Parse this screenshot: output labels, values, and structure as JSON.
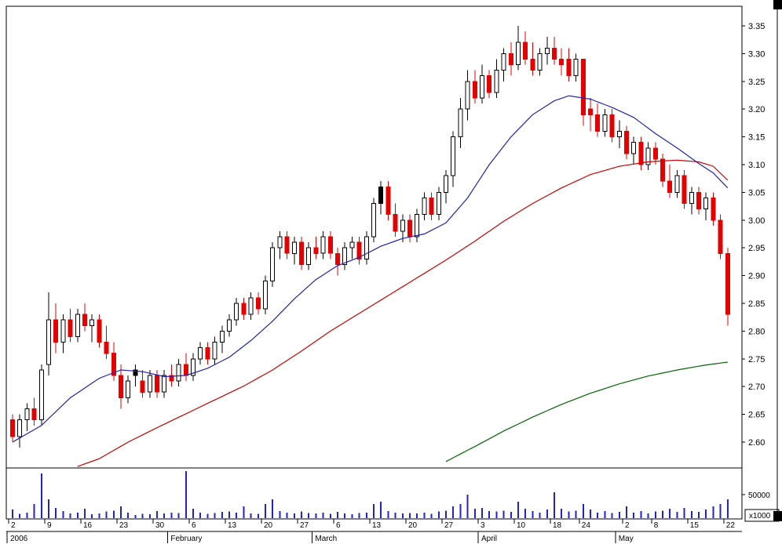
{
  "colors": {
    "frame": "#000000",
    "axis_text": "#000000",
    "up_candle": "#ffffff",
    "down_candle": "#e60000",
    "candle_outline": "#000000",
    "black_candle": "#000000",
    "ma_short": "#2222bb",
    "ma_medium": "#cc0000",
    "ma_long": "#006600",
    "volume": "#2222cc"
  },
  "chart_data": {
    "type": "candlestick",
    "title": "",
    "ylim": [
      2.6,
      3.35
    ],
    "y_tick_labels": [
      "3.35",
      "3.30",
      "3.25",
      "3.20",
      "3.15",
      "3.10",
      "3.05",
      "3.00",
      "2.95",
      "2.90",
      "2.85",
      "2.80",
      "2.75",
      "2.70",
      "2.65",
      "2.60"
    ],
    "volume_gridline": {
      "value": 50000,
      "label": "50000"
    },
    "volume_unit_label": "x1000",
    "year_label": "2006",
    "day_ticks": [
      {
        "i": 0,
        "label": "2"
      },
      {
        "i": 5,
        "label": "9"
      },
      {
        "i": 10,
        "label": "16"
      },
      {
        "i": 15,
        "label": "23"
      },
      {
        "i": 20,
        "label": "30"
      },
      {
        "i": 25,
        "label": "6"
      },
      {
        "i": 30,
        "label": "13"
      },
      {
        "i": 35,
        "label": "20"
      },
      {
        "i": 40,
        "label": "27"
      },
      {
        "i": 45,
        "label": "6"
      },
      {
        "i": 50,
        "label": "13"
      },
      {
        "i": 55,
        "label": "20"
      },
      {
        "i": 60,
        "label": "27"
      },
      {
        "i": 65,
        "label": "3"
      },
      {
        "i": 70,
        "label": "10"
      },
      {
        "i": 75,
        "label": "18"
      },
      {
        "i": 79,
        "label": "24"
      },
      {
        "i": 85,
        "label": "2"
      },
      {
        "i": 89,
        "label": "8"
      },
      {
        "i": 94,
        "label": "15"
      },
      {
        "i": 99,
        "label": "22"
      }
    ],
    "months": [
      {
        "i": 0,
        "label": "2006"
      },
      {
        "i": 22,
        "label": "February"
      },
      {
        "i": 42,
        "label": "March"
      },
      {
        "i": 65,
        "label": "April"
      },
      {
        "i": 84,
        "label": "May"
      }
    ],
    "candles": [
      [
        2.64,
        2.65,
        2.6,
        2.61
      ],
      [
        2.61,
        2.65,
        2.59,
        2.64
      ],
      [
        2.64,
        2.67,
        2.62,
        2.66
      ],
      [
        2.66,
        2.68,
        2.63,
        2.64
      ],
      [
        2.64,
        2.74,
        2.63,
        2.73
      ],
      [
        2.74,
        2.87,
        2.72,
        2.82
      ],
      [
        2.82,
        2.85,
        2.76,
        2.78
      ],
      [
        2.78,
        2.83,
        2.76,
        2.82
      ],
      [
        2.82,
        2.84,
        2.78,
        2.79
      ],
      [
        2.79,
        2.84,
        2.78,
        2.83
      ],
      [
        2.83,
        2.85,
        2.8,
        2.81
      ],
      [
        2.81,
        2.83,
        2.78,
        2.82
      ],
      [
        2.82,
        2.83,
        2.77,
        2.78
      ],
      [
        2.78,
        2.81,
        2.75,
        2.76
      ],
      [
        2.76,
        2.78,
        2.71,
        2.72
      ],
      [
        2.72,
        2.74,
        2.66,
        2.68
      ],
      [
        2.68,
        2.72,
        2.67,
        2.71
      ],
      [
        2.72,
        2.74,
        2.7,
        2.73
      ],
      [
        2.71,
        2.73,
        2.68,
        2.69
      ],
      [
        2.69,
        2.73,
        2.68,
        2.72
      ],
      [
        2.72,
        2.73,
        2.68,
        2.69
      ],
      [
        2.69,
        2.73,
        2.68,
        2.72
      ],
      [
        2.72,
        2.74,
        2.7,
        2.71
      ],
      [
        2.71,
        2.75,
        2.7,
        2.74
      ],
      [
        2.74,
        2.76,
        2.71,
        2.72
      ],
      [
        2.72,
        2.76,
        2.71,
        2.75
      ],
      [
        2.75,
        2.78,
        2.74,
        2.77
      ],
      [
        2.77,
        2.78,
        2.74,
        2.75
      ],
      [
        2.75,
        2.79,
        2.74,
        2.78
      ],
      [
        2.78,
        2.81,
        2.76,
        2.8
      ],
      [
        2.8,
        2.83,
        2.79,
        2.82
      ],
      [
        2.82,
        2.86,
        2.81,
        2.85
      ],
      [
        2.85,
        2.86,
        2.82,
        2.83
      ],
      [
        2.83,
        2.87,
        2.82,
        2.86
      ],
      [
        2.86,
        2.87,
        2.83,
        2.84
      ],
      [
        2.84,
        2.9,
        2.83,
        2.89
      ],
      [
        2.89,
        2.96,
        2.88,
        2.95
      ],
      [
        2.95,
        2.98,
        2.93,
        2.97
      ],
      [
        2.97,
        2.98,
        2.93,
        2.94
      ],
      [
        2.94,
        2.97,
        2.92,
        2.96
      ],
      [
        2.96,
        2.97,
        2.91,
        2.92
      ],
      [
        2.92,
        2.96,
        2.91,
        2.95
      ],
      [
        2.95,
        2.97,
        2.93,
        2.94
      ],
      [
        2.94,
        2.98,
        2.93,
        2.97
      ],
      [
        2.97,
        2.98,
        2.93,
        2.94
      ],
      [
        2.94,
        2.95,
        2.9,
        2.92
      ],
      [
        2.92,
        2.96,
        2.91,
        2.95
      ],
      [
        2.95,
        2.97,
        2.93,
        2.96
      ],
      [
        2.96,
        2.97,
        2.92,
        2.93
      ],
      [
        2.93,
        2.98,
        2.92,
        2.97
      ],
      [
        2.97,
        3.04,
        2.96,
        3.03
      ],
      [
        3.03,
        3.07,
        3.01,
        3.06
      ],
      [
        3.06,
        3.07,
        3.0,
        3.01
      ],
      [
        3.01,
        3.03,
        2.97,
        2.98
      ],
      [
        2.98,
        3.01,
        2.96,
        3.0
      ],
      [
        3.0,
        3.01,
        2.96,
        2.97
      ],
      [
        2.97,
        3.02,
        2.96,
        3.01
      ],
      [
        3.01,
        3.05,
        3.0,
        3.04
      ],
      [
        3.04,
        3.05,
        3.0,
        3.01
      ],
      [
        3.01,
        3.06,
        3.0,
        3.05
      ],
      [
        3.05,
        3.09,
        3.03,
        3.08
      ],
      [
        3.08,
        3.16,
        3.06,
        3.15
      ],
      [
        3.15,
        3.22,
        3.13,
        3.2
      ],
      [
        3.2,
        3.27,
        3.18,
        3.25
      ],
      [
        3.25,
        3.27,
        3.21,
        3.22
      ],
      [
        3.22,
        3.28,
        3.21,
        3.26
      ],
      [
        3.26,
        3.27,
        3.22,
        3.23
      ],
      [
        3.23,
        3.29,
        3.22,
        3.27
      ],
      [
        3.27,
        3.31,
        3.25,
        3.3
      ],
      [
        3.3,
        3.32,
        3.26,
        3.28
      ],
      [
        3.28,
        3.35,
        3.27,
        3.32
      ],
      [
        3.32,
        3.34,
        3.28,
        3.29
      ],
      [
        3.29,
        3.32,
        3.26,
        3.27
      ],
      [
        3.27,
        3.31,
        3.26,
        3.3
      ],
      [
        3.3,
        3.33,
        3.28,
        3.31
      ],
      [
        3.31,
        3.33,
        3.28,
        3.29
      ],
      [
        3.29,
        3.31,
        3.26,
        3.28
      ],
      [
        3.29,
        3.31,
        3.25,
        3.26
      ],
      [
        3.26,
        3.3,
        3.25,
        3.29
      ],
      [
        3.29,
        3.29,
        3.17,
        3.19
      ],
      [
        3.2,
        3.22,
        3.16,
        3.19
      ],
      [
        3.19,
        3.21,
        3.15,
        3.16
      ],
      [
        3.16,
        3.2,
        3.15,
        3.19
      ],
      [
        3.19,
        3.2,
        3.14,
        3.15
      ],
      [
        3.15,
        3.18,
        3.13,
        3.16
      ],
      [
        3.16,
        3.17,
        3.11,
        3.12
      ],
      [
        3.12,
        3.15,
        3.1,
        3.14
      ],
      [
        3.14,
        3.15,
        3.09,
        3.1
      ],
      [
        3.1,
        3.14,
        3.09,
        3.13
      ],
      [
        3.13,
        3.14,
        3.1,
        3.11
      ],
      [
        3.11,
        3.12,
        3.06,
        3.07
      ],
      [
        3.07,
        3.1,
        3.04,
        3.05
      ],
      [
        3.05,
        3.09,
        3.04,
        3.08
      ],
      [
        3.08,
        3.09,
        3.02,
        3.03
      ],
      [
        3.03,
        3.06,
        3.01,
        3.05
      ],
      [
        3.05,
        3.06,
        3.01,
        3.02
      ],
      [
        3.02,
        3.05,
        3.0,
        3.04
      ],
      [
        3.04,
        3.05,
        2.99,
        3.0
      ],
      [
        3.0,
        3.01,
        2.93,
        2.94
      ],
      [
        2.94,
        2.95,
        2.81,
        2.83
      ]
    ],
    "black_indices": [
      17,
      51
    ],
    "volumes": [
      18000,
      9000,
      12000,
      30000,
      95000,
      40000,
      22000,
      15000,
      10000,
      12000,
      20000,
      8000,
      10000,
      14000,
      16000,
      25000,
      12000,
      7000,
      9000,
      8000,
      15000,
      10000,
      12000,
      11000,
      100000,
      20000,
      12000,
      9000,
      11000,
      13000,
      14000,
      12000,
      25000,
      10000,
      9000,
      30000,
      40000,
      15000,
      12000,
      10000,
      14000,
      11000,
      10000,
      12000,
      9000,
      13000,
      10000,
      8000,
      11000,
      12000,
      30000,
      35000,
      15000,
      12000,
      10000,
      11000,
      10000,
      12000,
      9000,
      14000,
      16000,
      25000,
      30000,
      50000,
      20000,
      22000,
      15000,
      14000,
      16000,
      13000,
      35000,
      20000,
      15000,
      12000,
      18000,
      55000,
      20000,
      14000,
      16000,
      30000,
      18000,
      12000,
      15000,
      11000,
      13000,
      25000,
      12000,
      15000,
      10000,
      14000,
      16000,
      20000,
      13000,
      22000,
      15000,
      13000,
      18000,
      25000,
      30000,
      40000
    ],
    "ma_short": {
      "name": "short-moving-average",
      "points": [
        [
          0,
          2.6
        ],
        [
          4,
          2.63
        ],
        [
          8,
          2.68
        ],
        [
          12,
          2.715
        ],
        [
          15,
          2.73
        ],
        [
          18,
          2.727
        ],
        [
          21,
          2.718
        ],
        [
          24,
          2.72
        ],
        [
          27,
          2.733
        ],
        [
          30,
          2.753
        ],
        [
          33,
          2.783
        ],
        [
          36,
          2.818
        ],
        [
          39,
          2.858
        ],
        [
          42,
          2.893
        ],
        [
          45,
          2.918
        ],
        [
          48,
          2.933
        ],
        [
          51,
          2.953
        ],
        [
          54,
          2.967
        ],
        [
          57,
          2.975
        ],
        [
          60,
          2.995
        ],
        [
          63,
          3.04
        ],
        [
          66,
          3.1
        ],
        [
          69,
          3.15
        ],
        [
          72,
          3.19
        ],
        [
          75,
          3.215
        ],
        [
          77,
          3.224
        ],
        [
          80,
          3.218
        ],
        [
          83,
          3.203
        ],
        [
          86,
          3.185
        ],
        [
          89,
          3.156
        ],
        [
          92,
          3.13
        ],
        [
          95,
          3.102
        ],
        [
          97,
          3.085
        ],
        [
          99,
          3.058
        ]
      ]
    },
    "ma_medium": {
      "name": "medium-moving-average",
      "points": [
        [
          9,
          2.556
        ],
        [
          12,
          2.57
        ],
        [
          16,
          2.6
        ],
        [
          20,
          2.626
        ],
        [
          24,
          2.651
        ],
        [
          28,
          2.676
        ],
        [
          32,
          2.701
        ],
        [
          36,
          2.73
        ],
        [
          40,
          2.764
        ],
        [
          44,
          2.8
        ],
        [
          48,
          2.832
        ],
        [
          52,
          2.864
        ],
        [
          56,
          2.896
        ],
        [
          60,
          2.928
        ],
        [
          64,
          2.962
        ],
        [
          68,
          2.998
        ],
        [
          72,
          3.03
        ],
        [
          76,
          3.058
        ],
        [
          80,
          3.082
        ],
        [
          84,
          3.097
        ],
        [
          88,
          3.105
        ],
        [
          92,
          3.108
        ],
        [
          95,
          3.105
        ],
        [
          97,
          3.097
        ],
        [
          99,
          3.072
        ]
      ]
    },
    "ma_long": {
      "name": "long-moving-average",
      "points": [
        [
          60,
          2.565
        ],
        [
          64,
          2.592
        ],
        [
          68,
          2.62
        ],
        [
          72,
          2.645
        ],
        [
          76,
          2.668
        ],
        [
          80,
          2.688
        ],
        [
          84,
          2.705
        ],
        [
          88,
          2.719
        ],
        [
          92,
          2.73
        ],
        [
          96,
          2.739
        ],
        [
          99,
          2.744
        ]
      ]
    }
  }
}
